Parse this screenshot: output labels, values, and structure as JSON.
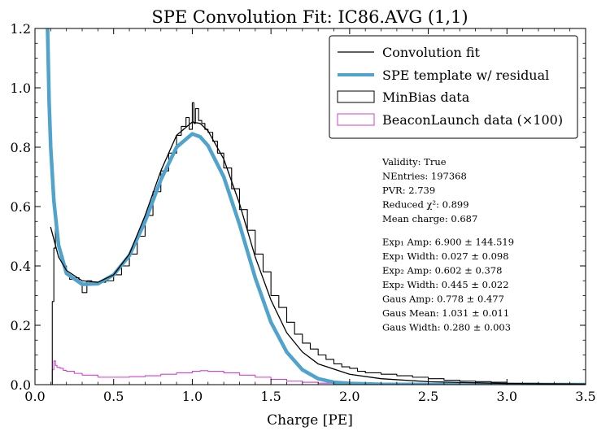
{
  "chart_data": {
    "type": "line",
    "title": "SPE Convolution Fit: IC86.AVG (1,1)",
    "xlabel": "Charge [PE]",
    "ylabel": "",
    "xlim": [
      0.0,
      3.5
    ],
    "ylim": [
      0.0,
      1.2
    ],
    "xticks": [
      "0.0",
      "0.5",
      "1.0",
      "1.5",
      "2.0",
      "2.5",
      "3.0",
      "3.5"
    ],
    "yticks": [
      "0.0",
      "0.2",
      "0.4",
      "0.6",
      "0.8",
      "1.0",
      "1.2"
    ],
    "grid": false,
    "legend": {
      "placement": "top-right",
      "entries": [
        {
          "label": "Convolution fit",
          "color": "#000000",
          "style": "line"
        },
        {
          "label": "SPE template w/ residual",
          "color": "#4fa3cc",
          "style": "thick-line"
        },
        {
          "label": "MinBias data",
          "color": "#000000",
          "style": "box"
        },
        {
          "label": "BeaconLaunch data (×100)",
          "color": "#d23fd2",
          "style": "box"
        }
      ]
    },
    "stats": [
      "Validity: True",
      "NEntries: 197368",
      "PVR: 2.739",
      "Reduced χ²: 0.899",
      "Mean charge: 0.687",
      "",
      "Exp₁ Amp: 6.900 ± 144.519",
      "Exp₁ Width: 0.027 ± 0.098",
      "Exp₂ Amp: 0.602 ± 0.378",
      "Exp₂ Width: 0.445 ± 0.022",
      "Gaus Amp: 0.778 ± 0.477",
      "Gaus Mean: 1.031 ± 0.011",
      "Gaus Width: 0.280 ± 0.003"
    ],
    "series": [
      {
        "name": "Convolution fit",
        "color": "#000000",
        "x": [
          0.1,
          0.15,
          0.2,
          0.3,
          0.4,
          0.5,
          0.6,
          0.7,
          0.8,
          0.9,
          1.0,
          1.05,
          1.1,
          1.2,
          1.3,
          1.4,
          1.5,
          1.6,
          1.7,
          1.8,
          2.0,
          2.2,
          2.5,
          3.0,
          3.5
        ],
        "y": [
          0.53,
          0.43,
          0.385,
          0.35,
          0.345,
          0.37,
          0.44,
          0.57,
          0.72,
          0.84,
          0.885,
          0.88,
          0.855,
          0.76,
          0.61,
          0.43,
          0.285,
          0.175,
          0.11,
          0.07,
          0.035,
          0.02,
          0.01,
          0.004,
          0.002
        ]
      },
      {
        "name": "SPE template w/ residual",
        "color": "#4fa3cc",
        "x": [
          0.08,
          0.09,
          0.1,
          0.12,
          0.15,
          0.2,
          0.3,
          0.4,
          0.5,
          0.6,
          0.7,
          0.8,
          0.9,
          1.0,
          1.05,
          1.1,
          1.2,
          1.3,
          1.4,
          1.5,
          1.6,
          1.7,
          1.8,
          1.9,
          2.0,
          2.2,
          2.5,
          3.0,
          3.5
        ],
        "y": [
          1.2,
          0.95,
          0.8,
          0.62,
          0.47,
          0.375,
          0.338,
          0.34,
          0.37,
          0.435,
          0.55,
          0.69,
          0.8,
          0.845,
          0.835,
          0.805,
          0.7,
          0.54,
          0.36,
          0.21,
          0.11,
          0.05,
          0.02,
          0.008,
          0.004,
          0.001,
          0.0005,
          0.0002,
          0.0001
        ]
      },
      {
        "name": "MinBias data",
        "color": "#000000",
        "x": [
          0.08,
          0.09,
          0.1,
          0.11,
          0.12,
          0.13,
          0.14,
          0.15,
          0.16,
          0.18,
          0.2,
          0.22,
          0.25,
          0.28,
          0.3,
          0.33,
          0.36,
          0.4,
          0.45,
          0.5,
          0.55,
          0.6,
          0.65,
          0.7,
          0.75,
          0.8,
          0.85,
          0.9,
          0.93,
          0.96,
          0.98,
          1.0,
          1.01,
          1.02,
          1.04,
          1.06,
          1.08,
          1.1,
          1.13,
          1.16,
          1.2,
          1.25,
          1.3,
          1.35,
          1.4,
          1.45,
          1.5,
          1.55,
          1.6,
          1.65,
          1.7,
          1.75,
          1.8,
          1.85,
          1.9,
          1.95,
          2.0,
          2.05,
          2.1,
          2.2,
          2.3,
          2.4,
          2.5,
          2.6,
          2.7,
          2.8,
          2.9,
          3.0,
          3.2,
          3.5
        ],
        "y": [
          0.0,
          0.0,
          0.0,
          0.28,
          0.46,
          0.53,
          0.5,
          0.46,
          0.43,
          0.4,
          0.37,
          0.355,
          0.36,
          0.345,
          0.31,
          0.35,
          0.34,
          0.345,
          0.35,
          0.37,
          0.4,
          0.44,
          0.5,
          0.57,
          0.65,
          0.72,
          0.78,
          0.84,
          0.87,
          0.9,
          0.86,
          0.95,
          0.88,
          0.93,
          0.89,
          0.88,
          0.86,
          0.85,
          0.82,
          0.78,
          0.73,
          0.66,
          0.59,
          0.52,
          0.44,
          0.38,
          0.3,
          0.26,
          0.21,
          0.17,
          0.14,
          0.12,
          0.1,
          0.085,
          0.07,
          0.06,
          0.055,
          0.045,
          0.04,
          0.035,
          0.03,
          0.025,
          0.02,
          0.015,
          0.012,
          0.01,
          0.008,
          0.005,
          0.003,
          0.002
        ]
      },
      {
        "name": "BeaconLaunch data (×100)",
        "color": "#d23fd2",
        "x": [
          0.08,
          0.1,
          0.11,
          0.12,
          0.13,
          0.14,
          0.16,
          0.18,
          0.2,
          0.25,
          0.3,
          0.4,
          0.5,
          0.6,
          0.7,
          0.8,
          0.9,
          1.0,
          1.05,
          1.1,
          1.2,
          1.3,
          1.4,
          1.5,
          1.6,
          1.7,
          1.8,
          1.9,
          2.0,
          2.5,
          3.0,
          3.5
        ],
        "y": [
          0.0,
          0.0,
          0.05,
          0.08,
          0.065,
          0.058,
          0.055,
          0.048,
          0.045,
          0.038,
          0.032,
          0.025,
          0.025,
          0.027,
          0.03,
          0.035,
          0.04,
          0.045,
          0.047,
          0.045,
          0.04,
          0.032,
          0.025,
          0.018,
          0.012,
          0.008,
          0.005,
          0.003,
          0.002,
          0.001,
          0.0,
          0.0
        ]
      }
    ]
  }
}
